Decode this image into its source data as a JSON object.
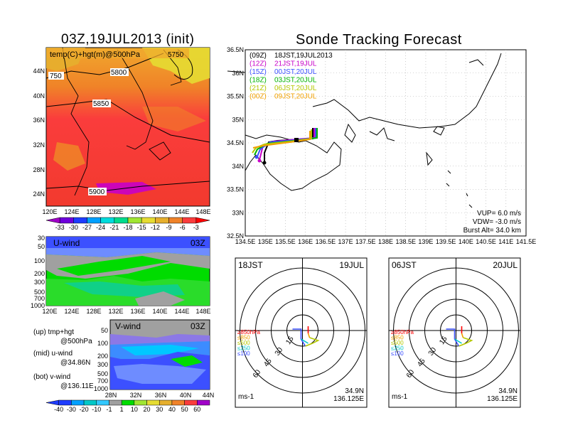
{
  "header": {
    "left_title": "03Z,19JUL2013 (init)",
    "right_title": "Sonde Tracking Forecast"
  },
  "map_panel": {
    "field_label": "temp(C)+hgt(m)@500hPa",
    "y_ticks": [
      "44N",
      "40N",
      "36N",
      "32N",
      "28N",
      "24N"
    ],
    "x_ticks": [
      "120E",
      "124E",
      "128E",
      "132E",
      "136E",
      "140E",
      "144E",
      "148E"
    ],
    "contours": [
      "750",
      "5800",
      "5850",
      "5900",
      "5750"
    ],
    "colorbar_ticks": [
      "-33",
      "-30",
      "-27",
      "-24",
      "-21",
      "-18",
      "-15",
      "-12",
      "-9",
      "-6",
      "-3"
    ],
    "colorbar_colors": [
      "#a000c8",
      "#6e00dc",
      "#1e3cff",
      "#00a0ff",
      "#00dcdc",
      "#00dc8c",
      "#a0e632",
      "#e6dc32",
      "#e6af2d",
      "#f08228",
      "#fa3c3c",
      "#ff0000"
    ]
  },
  "u_panel": {
    "label": "U-wind",
    "time": "03Z",
    "y_ticks": [
      "30",
      "50",
      "100",
      "200",
      "300",
      "500",
      "700",
      "1000"
    ],
    "x_ticks": [
      "120E",
      "124E",
      "128E",
      "132E",
      "136E",
      "140E",
      "144E",
      "148E"
    ]
  },
  "v_panel": {
    "label": "V-wind",
    "time": "03Z",
    "y_ticks": [
      "50",
      "100",
      "200",
      "300",
      "500",
      "700",
      "1000"
    ],
    "x_ticks": [
      "28N",
      "32N",
      "36N",
      "40N",
      "44N"
    ]
  },
  "legend_text": {
    "up1": "(up)  tmp+hgt",
    "up2": "@500hPa",
    "mid1": "(mid)  u-wind",
    "mid2": "@34.86N",
    "bot1": "(bot)  v-wind",
    "bot2": "@136.11E"
  },
  "wind_colorbar": {
    "ticks": [
      "-40",
      "-30",
      "-20",
      "-10",
      "-1",
      "1",
      "10",
      "20",
      "30",
      "40",
      "50",
      "60"
    ],
    "colors": [
      "#1e3cff",
      "#00a0ff",
      "#00c8c8",
      "#32c8ff",
      "#a0a0a0",
      "#00dc00",
      "#a0e632",
      "#e6dc32",
      "#e6af2d",
      "#f08228",
      "#fa3c3c",
      "#a000c8"
    ]
  },
  "track_map": {
    "y_ticks": [
      "36.5N",
      "36N",
      "35.5N",
      "35N",
      "34.5N",
      "34N",
      "33.5N",
      "33N",
      "32.5N"
    ],
    "x_ticks": [
      "134.5E",
      "135E",
      "135.5E",
      "136E",
      "136.5E",
      "137E",
      "137.5E",
      "138E",
      "138.5E",
      "139E",
      "139.5E",
      "140E",
      "140.5E",
      "141E",
      "141.5E"
    ],
    "launches": [
      {
        "code": "(09Z)",
        "text": "18JST,19JUL2013",
        "color": "#000000"
      },
      {
        "code": "(12Z)",
        "text": "21JST,19JUL",
        "color": "#c800c8"
      },
      {
        "code": "(15Z)",
        "text": "00JST,20JUL",
        "color": "#3c50ff"
      },
      {
        "code": "(18Z)",
        "text": "03JST,20JUL",
        "color": "#00b400"
      },
      {
        "code": "(21Z)",
        "text": "06JST,20JUL",
        "color": "#b4c800"
      },
      {
        "code": "(00Z)",
        "text": "09JST,20JUL",
        "color": "#f0a000"
      }
    ],
    "params": {
      "vup": "VUP=  6.0  m/s",
      "vdw": "VDW=  -3.0  m/s",
      "burst": "Burst Alt=  34.0  km"
    }
  },
  "polar_left": {
    "time": "18JST",
    "date": "19JUL",
    "ring_labels": [
      "15",
      "30",
      "45",
      "60"
    ],
    "levels": [
      "≥850hPa",
      "≤850",
      "≤500",
      "≤250",
      "≤100"
    ],
    "unit": "ms-1",
    "loc1": "34.9N",
    "loc2": "136.125E"
  },
  "polar_right": {
    "time": "06JST",
    "date": "20JUL",
    "ring_labels": [
      "15",
      "30",
      "45",
      "60"
    ],
    "levels": [
      "≥850hPa",
      "≤850",
      "≤500",
      "≤250",
      "≤100"
    ],
    "unit": "ms-1",
    "loc1": "34.9N",
    "loc2": "136.125E"
  },
  "level_colors": [
    "#ff0000",
    "#f0a000",
    "#b4c800",
    "#00c8c8",
    "#3c50ff"
  ]
}
